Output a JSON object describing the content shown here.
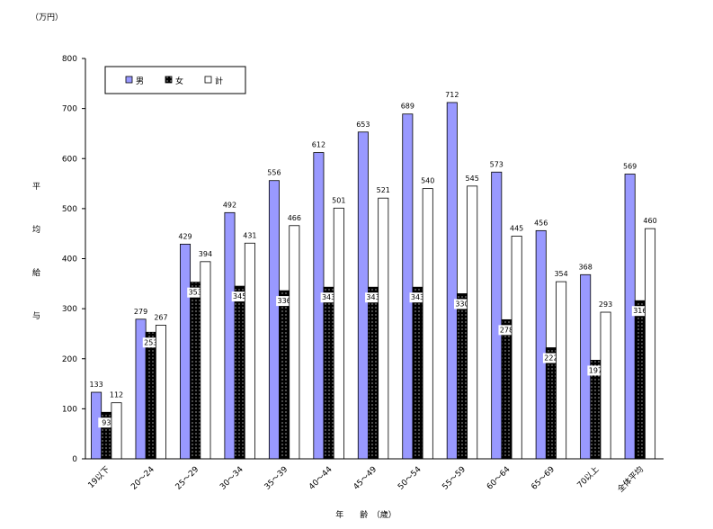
{
  "chart_data": {
    "type": "bar",
    "unit_label": "（万円）",
    "ylabel_chars": [
      "平",
      "均",
      "給",
      "与"
    ],
    "xlabel": "年　　齢　（歳）",
    "ylim": [
      0,
      800
    ],
    "yticks": [
      "0",
      "100",
      "200",
      "300",
      "400",
      "500",
      "600",
      "700",
      "800"
    ],
    "categories": [
      "19以下",
      "20～24",
      "25～29",
      "30～34",
      "35～39",
      "40～44",
      "45～49",
      "50～54",
      "55～59",
      "60～64",
      "65～69",
      "70以上",
      "全体平均"
    ],
    "series": [
      {
        "name": "男",
        "values": [
          133,
          279,
          429,
          492,
          556,
          612,
          653,
          689,
          712,
          573,
          456,
          368,
          569
        ],
        "color": "#9999ff",
        "pattern": "solid"
      },
      {
        "name": "女",
        "values": [
          93,
          253,
          353,
          345,
          336,
          343,
          343,
          343,
          330,
          278,
          222,
          197,
          316
        ],
        "color": "#000000",
        "pattern": "dotted"
      },
      {
        "name": "計",
        "values": [
          112,
          267,
          394,
          431,
          466,
          501,
          521,
          540,
          545,
          445,
          354,
          293,
          460
        ],
        "color": "#ffffff",
        "pattern": "solid"
      }
    ],
    "grid": false,
    "legend_position": "top-left"
  }
}
